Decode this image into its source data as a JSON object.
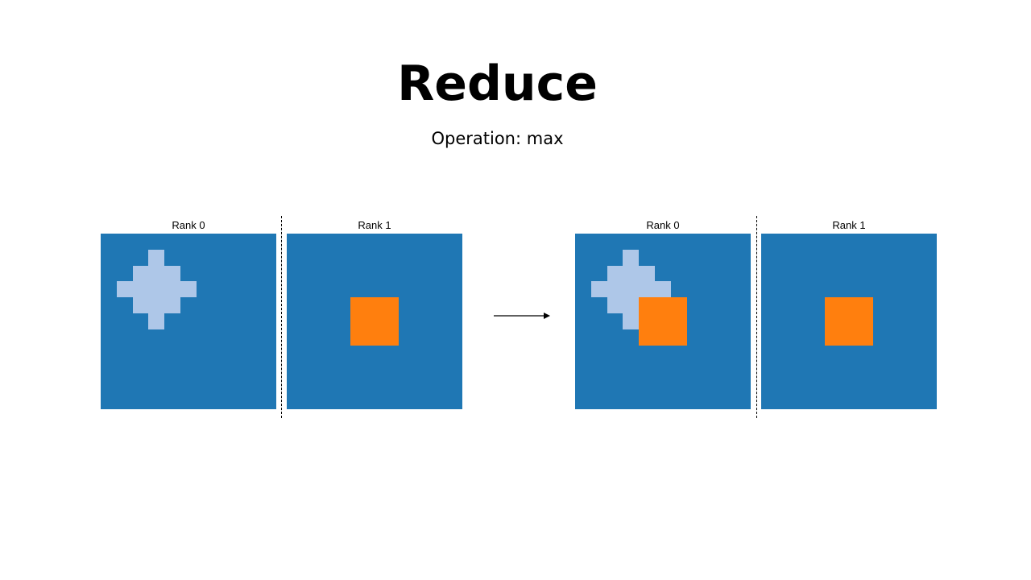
{
  "title": "Reduce",
  "subtitle": "Operation: max",
  "colors": {
    "panel": "#1f77b4",
    "rank0_data": "#aec7e8",
    "rank1_data": "#ff7f0e",
    "divider": "#000000",
    "arrow": "#000000"
  },
  "grid": {
    "rows": 10,
    "cols": 10
  },
  "rank0_cells": [
    [
      1,
      3
    ],
    [
      2,
      2
    ],
    [
      2,
      3
    ],
    [
      2,
      4
    ],
    [
      3,
      1
    ],
    [
      3,
      2
    ],
    [
      3,
      3
    ],
    [
      3,
      4
    ],
    [
      3,
      5
    ],
    [
      4,
      2
    ],
    [
      4,
      3
    ],
    [
      4,
      4
    ],
    [
      5,
      3
    ]
  ],
  "rank1_cells": [
    [
      4,
      4
    ],
    [
      4,
      5
    ],
    [
      4,
      6
    ],
    [
      5,
      4
    ],
    [
      5,
      5
    ],
    [
      5,
      6
    ],
    [
      6,
      4
    ],
    [
      6,
      5
    ],
    [
      6,
      6
    ]
  ],
  "before": {
    "rank0_label": "Rank 0",
    "rank1_label": "Rank 1"
  },
  "after": {
    "rank0_label": "Rank 0",
    "rank1_label": "Rank 1"
  }
}
